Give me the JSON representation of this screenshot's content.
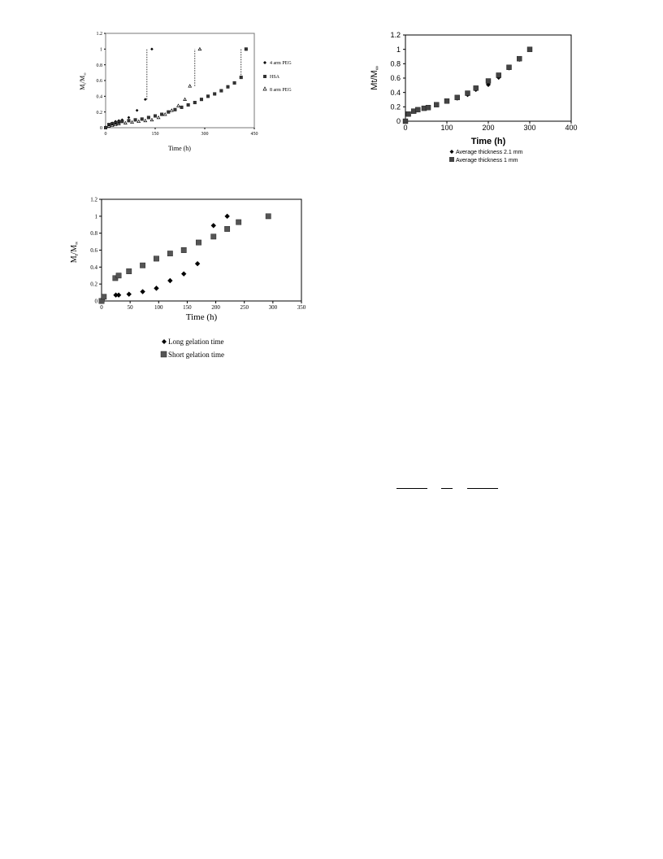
{
  "chart_data": [
    {
      "id": "chart1",
      "type": "scatter",
      "xlabel": "Time (h)",
      "ylabel": "Mₜ/M∞",
      "xlim": [
        0,
        450
      ],
      "ylim": [
        0,
        1.2
      ],
      "xticks": [
        0,
        150,
        300,
        450
      ],
      "yticks": [
        0,
        0.2,
        0.4,
        0.6,
        0.8,
        1,
        1.2
      ],
      "grid": false,
      "legend_position": "right",
      "series": [
        {
          "name": "4 arm PEG",
          "marker": "diamond",
          "color": "#000000",
          "x": [
            0,
            10,
            20,
            30,
            40,
            50,
            70,
            95,
            120,
            140
          ],
          "y": [
            0.01,
            0.04,
            0.06,
            0.08,
            0.09,
            0.1,
            0.13,
            0.22,
            0.36,
            1.0
          ]
        },
        {
          "name": "HSA",
          "marker": "square",
          "color": "#333333",
          "x": [
            0,
            10,
            20,
            30,
            40,
            50,
            70,
            90,
            110,
            130,
            150,
            170,
            190,
            210,
            230,
            250,
            270,
            290,
            310,
            330,
            350,
            370,
            390,
            410,
            425
          ],
          "y": [
            0.0,
            0.04,
            0.05,
            0.06,
            0.07,
            0.08,
            0.09,
            0.1,
            0.11,
            0.13,
            0.15,
            0.17,
            0.2,
            0.23,
            0.26,
            0.29,
            0.32,
            0.36,
            0.4,
            0.43,
            0.47,
            0.52,
            0.57,
            0.64,
            1.0
          ]
        },
        {
          "name": "8 arm PEG",
          "marker": "triangle",
          "color": "#000000",
          "x": [
            10,
            20,
            30,
            40,
            60,
            80,
            100,
            120,
            140,
            160,
            180,
            200,
            220,
            240,
            255,
            285
          ],
          "y": [
            0.02,
            0.03,
            0.04,
            0.05,
            0.06,
            0.07,
            0.08,
            0.09,
            0.1,
            0.13,
            0.17,
            0.22,
            0.28,
            0.36,
            0.53,
            1.0
          ]
        }
      ],
      "vlines": [
        125,
        270,
        410
      ]
    },
    {
      "id": "chart2",
      "type": "scatter",
      "xlabel": "Time (h)",
      "ylabel": "Mt/M∞",
      "xlim": [
        0,
        400
      ],
      "ylim": [
        0,
        1.2
      ],
      "xticks": [
        0,
        100,
        200,
        300,
        400
      ],
      "yticks": [
        0,
        0.2,
        0.4,
        0.6,
        0.8,
        1,
        1.2
      ],
      "grid": false,
      "legend_position": "bottom",
      "series": [
        {
          "name": "Average thickness 2.1 mm",
          "marker": "diamond",
          "color": "#000000",
          "x": [
            0,
            5,
            20,
            30,
            45,
            55,
            75,
            100,
            125,
            150,
            170,
            200,
            225,
            250,
            275,
            300
          ],
          "y": [
            0.0,
            0.1,
            0.14,
            0.16,
            0.18,
            0.19,
            0.23,
            0.28,
            0.32,
            0.37,
            0.44,
            0.51,
            0.61,
            0.74,
            0.86,
            1.0
          ]
        },
        {
          "name": "Average thickness 1 mm",
          "marker": "square",
          "color": "#444444",
          "x": [
            0,
            7,
            20,
            30,
            45,
            55,
            75,
            100,
            125,
            150,
            170,
            200,
            225,
            250,
            275,
            300
          ],
          "y": [
            0.0,
            0.1,
            0.14,
            0.16,
            0.18,
            0.19,
            0.23,
            0.28,
            0.33,
            0.39,
            0.46,
            0.56,
            0.64,
            0.75,
            0.87,
            1.0
          ]
        }
      ]
    },
    {
      "id": "chart3",
      "type": "scatter",
      "xlabel": "Time (h)",
      "ylabel": "Mₜ/M∞",
      "xlim": [
        0,
        350
      ],
      "ylim": [
        0,
        1.2
      ],
      "xticks": [
        0,
        50,
        100,
        150,
        200,
        250,
        300,
        350
      ],
      "yticks": [
        0,
        0.2,
        0.4,
        0.6,
        0.8,
        1,
        1.2
      ],
      "grid": false,
      "legend_position": "bottom",
      "series": [
        {
          "name": "Long gelation time",
          "marker": "diamond",
          "color": "#000000",
          "x": [
            0,
            2,
            25,
            30,
            48,
            72,
            96,
            120,
            144,
            168,
            196,
            220
          ],
          "y": [
            0.0,
            0.02,
            0.07,
            0.07,
            0.08,
            0.11,
            0.15,
            0.24,
            0.32,
            0.44,
            0.89,
            1.0
          ]
        },
        {
          "name": "Short gelation time",
          "marker": "square",
          "color": "#555555",
          "x": [
            0,
            4,
            24,
            30,
            48,
            72,
            96,
            120,
            144,
            170,
            196,
            220,
            240,
            292
          ],
          "y": [
            0.0,
            0.05,
            0.27,
            0.3,
            0.35,
            0.42,
            0.5,
            0.56,
            0.6,
            0.69,
            0.76,
            0.85,
            0.93,
            1.0
          ]
        }
      ]
    }
  ],
  "chart1_text": {
    "xlabel": "Time (h)",
    "y_main": "M",
    "y_sub1": "t",
    "y_slash": "/M",
    "y_sub2": "∞",
    "ticks_x": [
      "0",
      "150",
      "300",
      "450"
    ],
    "ticks_y": [
      "0",
      "0.2",
      "0.4",
      "0.6",
      "0.8",
      "1",
      "1.2"
    ],
    "legend": [
      "4 arm PEG",
      "HSA",
      "8 arm PEG"
    ]
  },
  "chart2_text": {
    "xlabel": "Time (h)",
    "y_main": "Mt/M",
    "y_sub": "∞",
    "ticks_x": [
      "0",
      "100",
      "200",
      "300",
      "400"
    ],
    "ticks_y": [
      "0",
      "0.2",
      "0.4",
      "0.6",
      "0.8",
      "1",
      "1.2"
    ],
    "legend": [
      "Average thickness 2.1 mm",
      "Average thickness 1 mm"
    ]
  },
  "chart3_text": {
    "xlabel": "Time (h)",
    "y_main": "M",
    "y_sub1": "t",
    "y_slash": "/M",
    "y_sub2": "∞",
    "ticks_x": [
      "0",
      "50",
      "100",
      "150",
      "200",
      "250",
      "300",
      "350"
    ],
    "ticks_y": [
      "0",
      "0.2",
      "0.4",
      "0.6",
      "0.8",
      "1",
      "1.2"
    ],
    "legend": [
      "Long gelation time",
      "Short gelation time"
    ]
  }
}
